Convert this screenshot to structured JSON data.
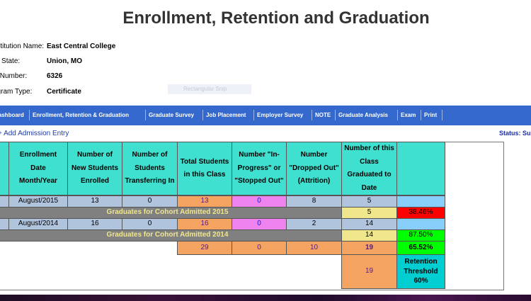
{
  "page": {
    "title": "Enrollment, Retention and Graduation"
  },
  "info": [
    {
      "label": "Institution Name:",
      "value": "East Central College"
    },
    {
      "label": "City, State:",
      "value": "Union, MO"
    },
    {
      "label": "ID Number:",
      "value": "6326"
    },
    {
      "label": "Program Type:",
      "value": "Certificate"
    }
  ],
  "ghost_button": "Rectangular Snip",
  "nav": [
    "Dashboard",
    "Enrollment, Retention & Graduation",
    "Graduate Survey",
    "Job Placement",
    "Employer Survey",
    "NOTE",
    "Graduate Analysis",
    "Exam",
    "Print"
  ],
  "add_admission": "+ Add Admission Entry",
  "status": "Status: Su",
  "table": {
    "headers": [
      "Enrollment Date Month/Year",
      "Number of New Students Enrolled",
      "Number of Students Transferring In",
      "Total Students in this Class",
      "Number \"In-Progress\" or \"Stopped Out\"",
      "Number \"Dropped Out\" (Attrition)",
      "Number of this Class Graduated to Date"
    ],
    "rows": [
      {
        "date": "August/2015",
        "enrolled": "13",
        "transfer": "0",
        "total": "13",
        "inprogress": "0",
        "dropped": "8",
        "graduated": "5"
      },
      {
        "date": "August/2014",
        "enrolled": "16",
        "transfer": "0",
        "total": "16",
        "inprogress": "0",
        "dropped": "2",
        "graduated": "14"
      }
    ],
    "cohorts": [
      {
        "label": "Graduates for Cohort Admitted 2015",
        "graduated": "5",
        "rate": "38.46%"
      },
      {
        "label": "Graduates for Cohort Admitted 2014",
        "graduated": "14",
        "rate": "87.50%"
      }
    ],
    "totals": {
      "total": "29",
      "inprogress": "0",
      "dropped": "10",
      "graduated": "19",
      "rate": "65.52%"
    },
    "threshold": {
      "value": "19",
      "label": "Retention Threshold 60%"
    }
  },
  "colors": {
    "nav": "#3568cc",
    "header": "#40e0d0",
    "orange": "#f4a460",
    "pink": "#ee82ee",
    "green": "#00ff00",
    "red": "#ff0000"
  }
}
